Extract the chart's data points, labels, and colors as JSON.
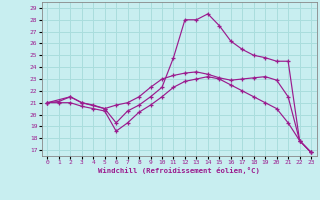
{
  "xlabel": "Windchill (Refroidissement éolien,°C)",
  "xlim": [
    -0.5,
    23.5
  ],
  "ylim": [
    16.5,
    29.5
  ],
  "xticks": [
    0,
    1,
    2,
    3,
    4,
    5,
    6,
    7,
    8,
    9,
    10,
    11,
    12,
    13,
    14,
    15,
    16,
    17,
    18,
    19,
    20,
    21,
    22,
    23
  ],
  "yticks": [
    17,
    18,
    19,
    20,
    21,
    22,
    23,
    24,
    25,
    26,
    27,
    28,
    29
  ],
  "bg_color": "#c8eef0",
  "line_color": "#9b1b8e",
  "grid_color": "#aadddd",
  "line1_x": [
    0,
    1,
    2,
    3,
    4,
    5,
    6,
    7,
    8,
    9,
    10,
    11,
    12,
    13,
    14,
    15,
    16,
    17,
    18,
    19,
    20,
    21,
    22,
    23
  ],
  "line1_y": [
    21.0,
    21.1,
    21.5,
    21.0,
    20.8,
    20.5,
    20.8,
    21.0,
    21.5,
    22.3,
    23.0,
    23.3,
    23.5,
    23.6,
    23.4,
    23.1,
    22.9,
    23.0,
    23.1,
    23.2,
    22.9,
    21.5,
    17.8,
    16.8
  ],
  "line2_x": [
    0,
    2,
    3,
    5,
    6,
    7,
    8,
    9,
    10,
    11,
    12,
    13,
    14,
    15,
    16,
    17,
    18,
    19,
    20,
    21,
    22,
    23
  ],
  "line2_y": [
    21.0,
    21.5,
    21.0,
    20.5,
    19.3,
    20.3,
    20.8,
    21.5,
    22.3,
    24.8,
    28.0,
    28.0,
    28.5,
    27.5,
    26.2,
    25.5,
    25.0,
    24.8,
    24.5,
    24.5,
    17.8,
    16.8
  ],
  "line3_x": [
    0,
    1,
    2,
    3,
    4,
    5,
    6,
    7,
    8,
    9,
    10,
    11,
    12,
    13,
    14,
    15,
    16,
    17,
    18,
    19,
    20,
    21,
    22,
    23
  ],
  "line3_y": [
    21.0,
    21.0,
    21.0,
    20.7,
    20.5,
    20.3,
    18.6,
    19.3,
    20.2,
    20.8,
    21.5,
    22.3,
    22.8,
    23.0,
    23.2,
    23.0,
    22.5,
    22.0,
    21.5,
    21.0,
    20.5,
    19.3,
    17.8,
    16.8
  ]
}
